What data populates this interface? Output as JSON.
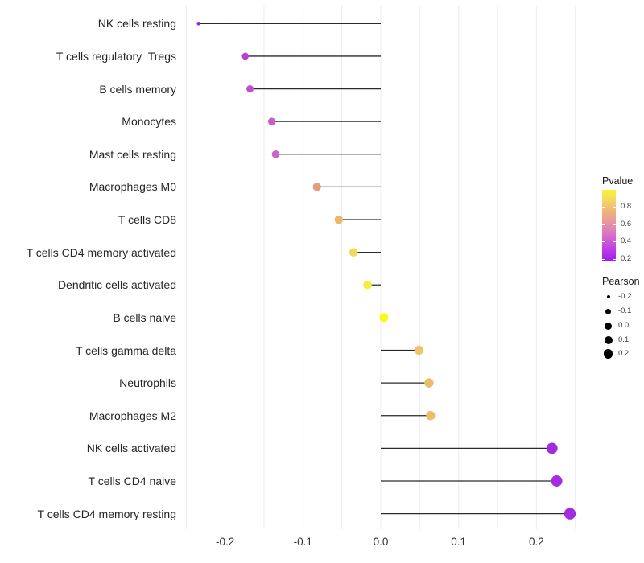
{
  "chart_data": {
    "type": "lollipop",
    "orientation": "horizontal",
    "title": "",
    "xlabel": "",
    "ylabel": "",
    "x_tick_labels": [
      "-0.2",
      "-0.1",
      "0.0",
      "0.1",
      "0.2"
    ],
    "x_ticks": [
      -0.2,
      -0.1,
      0.0,
      0.1,
      0.2
    ],
    "xlim": [
      -0.26,
      0.26
    ],
    "grid": "vertical minor gridlines every 0.05, no horizontal gridlines",
    "categories": [
      "NK cells resting",
      "T cells regulatory  Tregs",
      "B cells memory",
      "Monocytes",
      "Mast cells resting",
      "Macrophages M0",
      "T cells CD8",
      "T cells CD4 memory activated",
      "Dendritic cells activated",
      "B cells naive",
      "T cells gamma delta",
      "Neutrophils",
      "Macrophages M2",
      "NK cells activated",
      "T cells CD4 naive",
      "T cells CD4 memory resting"
    ],
    "series": [
      {
        "name": "Pearson",
        "values": [
          -0.234,
          -0.174,
          -0.168,
          -0.14,
          -0.135,
          -0.082,
          -0.054,
          -0.035,
          -0.017,
          0.004,
          0.049,
          0.062,
          0.064,
          0.22,
          0.226,
          0.243
        ]
      }
    ],
    "points": [
      {
        "label": "NK cells resting",
        "pearson": -0.234,
        "dot_color": "#9B22E2",
        "radius_px": 2.3
      },
      {
        "label": "T cells regulatory  Tregs",
        "pearson": -0.174,
        "dot_color": "#B93FD1",
        "radius_px": 4.3
      },
      {
        "label": "B cells memory",
        "pearson": -0.168,
        "dot_color": "#C14FCC",
        "radius_px": 4.5
      },
      {
        "label": "Monocytes",
        "pearson": -0.14,
        "dot_color": "#C75EC8",
        "radius_px": 4.7
      },
      {
        "label": "Mast cells resting",
        "pearson": -0.135,
        "dot_color": "#CA64C7",
        "radius_px": 4.8
      },
      {
        "label": "Macrophages M0",
        "pearson": -0.082,
        "dot_color": "#E29C82",
        "radius_px": 5.1
      },
      {
        "label": "T cells CD8",
        "pearson": -0.054,
        "dot_color": "#ECB969",
        "radius_px": 5.2
      },
      {
        "label": "T cells CD4 memory activated",
        "pearson": -0.035,
        "dot_color": "#F2D95B",
        "radius_px": 5.3
      },
      {
        "label": "Dendritic cells activated",
        "pearson": -0.017,
        "dot_color": "#F8EC3F",
        "radius_px": 5.3
      },
      {
        "label": "B cells naive",
        "pearson": 0.004,
        "dot_color": "#FBF614",
        "radius_px": 5.4
      },
      {
        "label": "T cells gamma delta",
        "pearson": 0.049,
        "dot_color": "#F0C46E",
        "radius_px": 5.6
      },
      {
        "label": "Neutrophils",
        "pearson": 0.062,
        "dot_color": "#EDBC66",
        "radius_px": 5.7
      },
      {
        "label": "Macrophages M2",
        "pearson": 0.064,
        "dot_color": "#EDBD68",
        "radius_px": 5.7
      },
      {
        "label": "NK cells activated",
        "pearson": 0.22,
        "dot_color": "#A42ADF",
        "radius_px": 6.9
      },
      {
        "label": "T cells CD4 naive",
        "pearson": 0.226,
        "dot_color": "#A62BE1",
        "radius_px": 7.0
      },
      {
        "label": "T cells CD4 memory resting",
        "pearson": 0.243,
        "dot_color": "#A52BDF",
        "radius_px": 7.2
      }
    ],
    "legend": {
      "position": "right",
      "pvalue": {
        "title": "Pvalue",
        "tick_labels": [
          "0.8",
          "0.6",
          "0.4",
          "0.2"
        ],
        "gradient_bottom_to_top": [
          {
            "pos": 0.0,
            "color": "#A21BEE"
          },
          {
            "pos": 0.15,
            "color": "#BB3BE3"
          },
          {
            "pos": 0.3,
            "color": "#CF63CF"
          },
          {
            "pos": 0.45,
            "color": "#DF85B5"
          },
          {
            "pos": 0.57,
            "color": "#E99D95"
          },
          {
            "pos": 0.68,
            "color": "#EFB07E"
          },
          {
            "pos": 0.8,
            "color": "#F4CA6B"
          },
          {
            "pos": 0.9,
            "color": "#F7DF55"
          },
          {
            "pos": 1.0,
            "color": "#FAF32B"
          }
        ]
      },
      "pearson": {
        "title": "Pearson",
        "items": [
          {
            "label": "-0.2",
            "radius_px": 2.2
          },
          {
            "label": "-0.1",
            "radius_px": 3.7
          },
          {
            "label": "0.0",
            "radius_px": 4.5
          },
          {
            "label": "0.1",
            "radius_px": 5.2
          },
          {
            "label": "0.2",
            "radius_px": 5.7
          }
        ],
        "dot_color": "#000000"
      }
    },
    "style": {
      "background": "#ffffff",
      "stem_color": "#2a2a2a",
      "grid_color": "#ececec",
      "axis_text_color": "#333333",
      "category_text_color": "#262626"
    }
  }
}
